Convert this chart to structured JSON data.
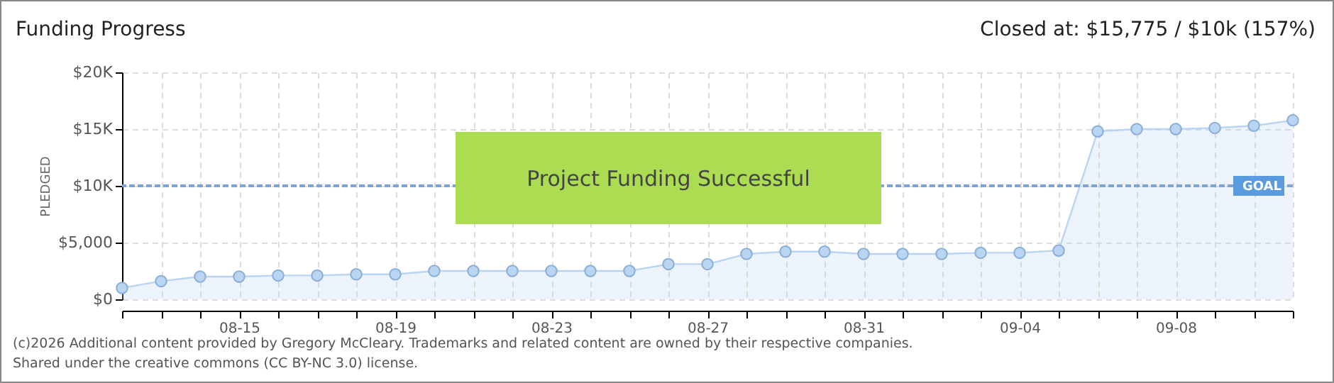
{
  "chart_data": {
    "type": "area",
    "title": "Funding Progress",
    "ylabel": "PLEDGED",
    "x": [
      "--08-12",
      "--08-13",
      "--08-14",
      "--08-15",
      "--08-16",
      "--08-17",
      "--08-18",
      "--08-19",
      "--08-20",
      "--08-21",
      "--08-22",
      "--08-23",
      "--08-24",
      "--08-25",
      "--08-26",
      "--08-27",
      "--08-28",
      "--08-29",
      "--08-30",
      "--08-31",
      "--09-01",
      "--09-02",
      "--09-03",
      "--09-04",
      "--09-05",
      "--09-06",
      "--09-07",
      "--09-08",
      "--09-09",
      "--09-10",
      "--09-11"
    ],
    "series": [
      {
        "color": "#b9d5f2",
        "values": [
          1000,
          1600,
          2000,
          2000,
          2100,
          2100,
          2200,
          2200,
          2500,
          2500,
          2500,
          2500,
          2500,
          2500,
          3100,
          3100,
          4000,
          4200,
          4200,
          4000,
          4000,
          4000,
          4100,
          4100,
          4300,
          14800,
          15000,
          15000,
          15100,
          15300,
          15775
        ]
      }
    ],
    "xlim": [
      "--08-12",
      "--09-11"
    ],
    "xticks": [
      {
        "value": "--08-12",
        "label": null
      },
      {
        "value": "--08-13",
        "label": null
      },
      {
        "value": "--08-14",
        "label": null
      },
      {
        "value": "--08-15",
        "label": "08-15"
      },
      {
        "value": "--08-16",
        "label": null
      },
      {
        "value": "--08-17",
        "label": null
      },
      {
        "value": "--08-18",
        "label": null
      },
      {
        "value": "--08-19",
        "label": "08-19"
      },
      {
        "value": "--08-20",
        "label": null
      },
      {
        "value": "--08-21",
        "label": null
      },
      {
        "value": "--08-22",
        "label": null
      },
      {
        "value": "--08-23",
        "label": "08-23"
      },
      {
        "value": "--08-24",
        "label": null
      },
      {
        "value": "--08-25",
        "label": null
      },
      {
        "value": "--08-26",
        "label": null
      },
      {
        "value": "--08-27",
        "label": "08-27"
      },
      {
        "value": "--08-28",
        "label": null
      },
      {
        "value": "--08-29",
        "label": null
      },
      {
        "value": "--08-30",
        "label": null
      },
      {
        "value": "--08-31",
        "label": "08-31"
      },
      {
        "value": "--09-01",
        "label": null
      },
      {
        "value": "--09-02",
        "label": null
      },
      {
        "value": "--09-03",
        "label": null
      },
      {
        "value": "--09-04",
        "label": "09-04"
      },
      {
        "value": "--09-05",
        "label": null
      },
      {
        "value": "--09-06",
        "label": null
      },
      {
        "value": "--09-07",
        "label": null
      },
      {
        "value": "--09-08",
        "label": "09-08"
      },
      {
        "value": "--09-09",
        "label": null
      },
      {
        "value": "--09-10",
        "label": null
      },
      {
        "value": "--09-11",
        "label": null
      }
    ],
    "ylim": [
      0,
      20000
    ],
    "yticks": [
      {
        "value": 0,
        "label": "$0"
      },
      {
        "value": 5000,
        "label": "$5,000"
      },
      {
        "value": 10000,
        "label": "$10K"
      },
      {
        "value": 15000,
        "label": "$15K"
      },
      {
        "value": 20000,
        "label": "$20K"
      }
    ],
    "ref_lines": [
      {
        "axis": "y",
        "value": 10000,
        "label": "GOAL",
        "color": "#7ba6d3",
        "line_style": "dashed"
      }
    ],
    "grid": true,
    "marker": "circle",
    "annotations": [
      "Project Funding Successful",
      "Closed at: $15,775 / $10k (157%)",
      "(c)2026 Additional content provided by Gregory McCleary. Trademarks and related content are owned by their respective companies.",
      "Shared under the creative commons (CC BY-NC 3.0) license."
    ]
  }
}
